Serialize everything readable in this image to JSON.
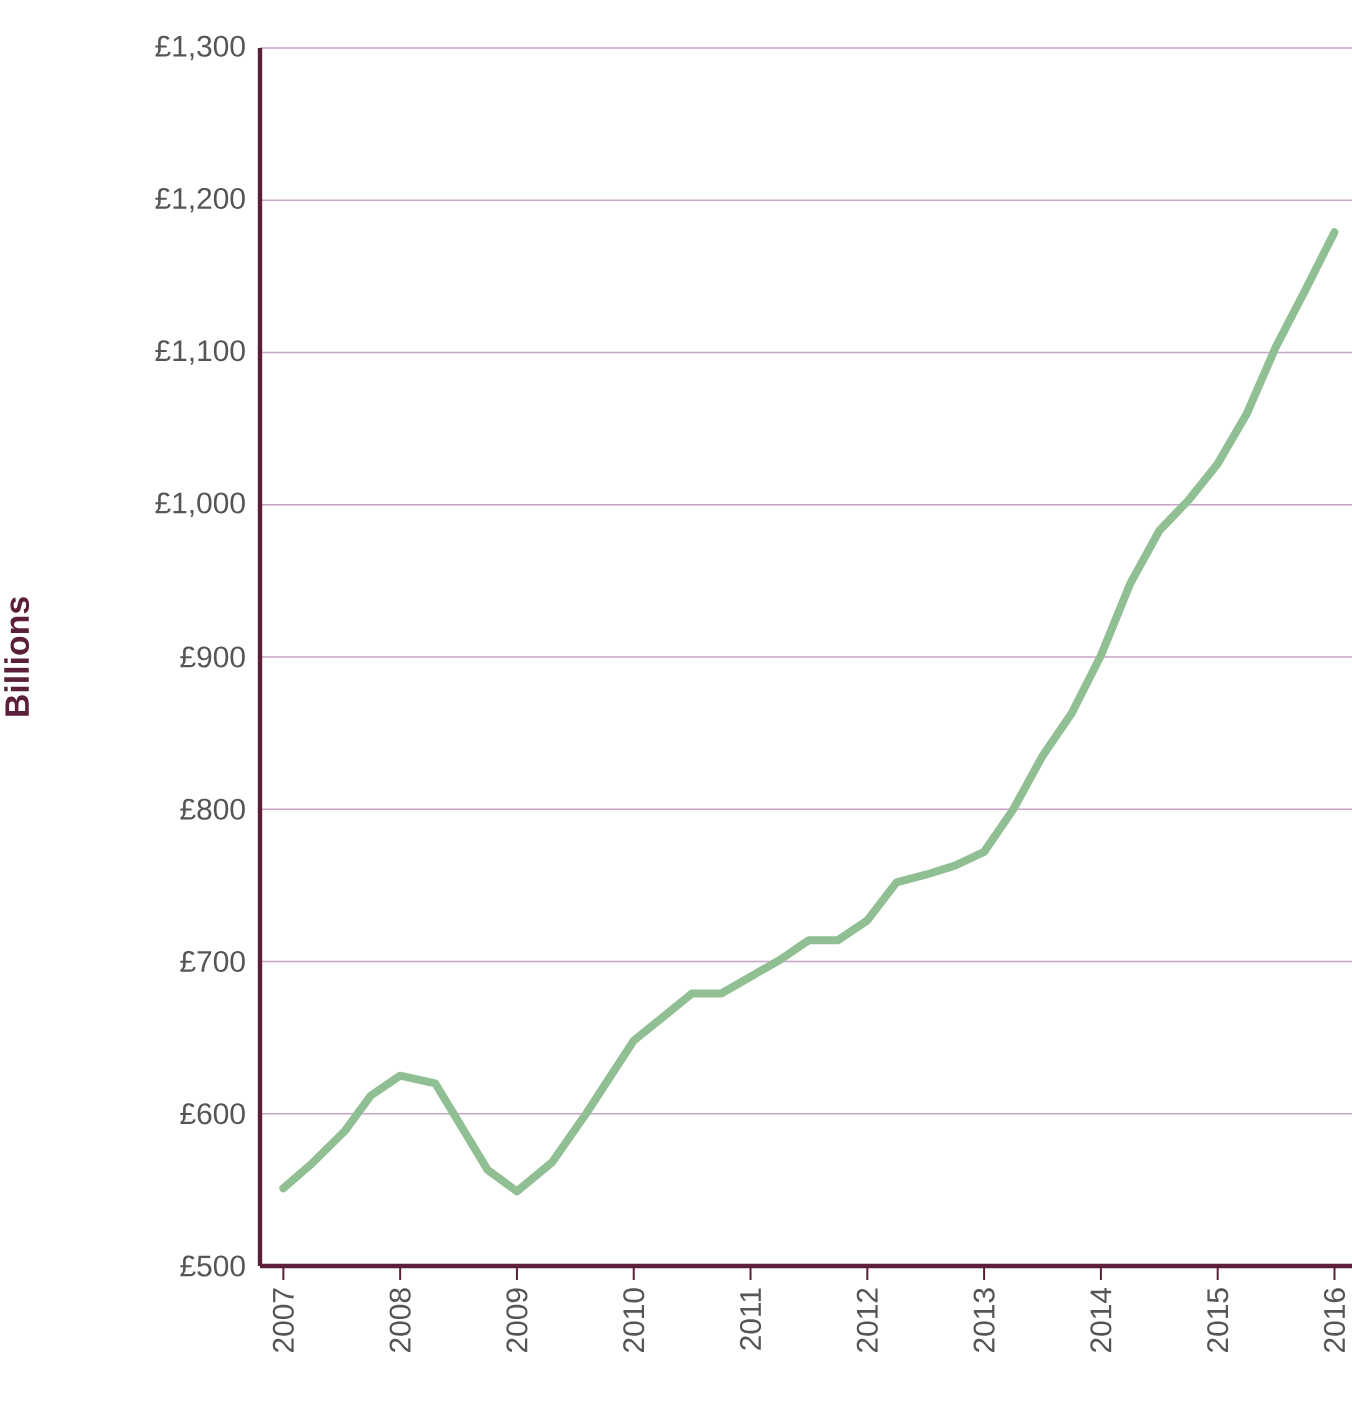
{
  "chart_data": {
    "type": "line",
    "ylabel": "Billions",
    "x": [
      2007.0,
      2007.24,
      2007.53,
      2007.75,
      2008.0,
      2008.3,
      2008.75,
      2009.0,
      2009.3,
      2009.6,
      2010.0,
      2010.5,
      2010.75,
      2011.0,
      2011.25,
      2011.5,
      2011.75,
      2012.0,
      2012.25,
      2012.5,
      2012.75,
      2013.0,
      2013.25,
      2013.5,
      2013.75,
      2014.0,
      2014.25,
      2014.5,
      2014.75,
      2015.0,
      2015.25,
      2015.5,
      2015.75,
      2016.0
    ],
    "values": [
      551,
      567,
      589,
      612,
      625,
      620,
      563,
      549,
      568,
      601,
      648,
      679,
      679,
      690,
      701,
      714,
      714,
      727,
      752,
      757,
      763,
      772,
      800,
      835,
      863,
      901,
      948,
      983,
      1003,
      1027,
      1060,
      1104,
      1141,
      1179
    ],
    "color": "#8fbf92",
    "line_style": "solid",
    "grid": "y",
    "xlim": [
      2006.8,
      2016.15
    ],
    "ylim": [
      500,
      1300
    ],
    "xticks": [
      2007,
      2008,
      2009,
      2010,
      2011,
      2012,
      2013,
      2014,
      2015,
      2016
    ],
    "yticks": [
      {
        "value": 500,
        "label": "£500"
      },
      {
        "value": 600,
        "label": "£600"
      },
      {
        "value": 700,
        "label": "£700"
      },
      {
        "value": 800,
        "label": "£800"
      },
      {
        "value": 900,
        "label": "£900"
      },
      {
        "value": 1000,
        "label": "£1,000"
      },
      {
        "value": 1100,
        "label": "£1,100"
      },
      {
        "value": 1200,
        "label": "£1,200"
      },
      {
        "value": 1300,
        "label": "£1,300"
      }
    ]
  }
}
